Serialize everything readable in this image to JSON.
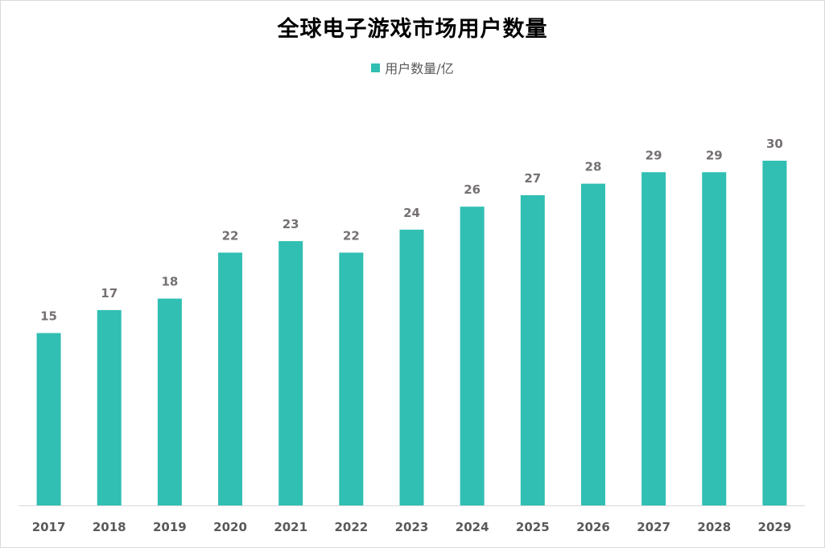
{
  "chart_data": {
    "type": "bar",
    "title": "全球电子游戏市场用户数量",
    "categories": [
      "2017",
      "2018",
      "2019",
      "2020",
      "2021",
      "2022",
      "2023",
      "2024",
      "2025",
      "2026",
      "2027",
      "2028",
      "2029"
    ],
    "series": [
      {
        "name": "用户数量/亿",
        "values": [
          15,
          17,
          18,
          22,
          23,
          22,
          24,
          26,
          27,
          28,
          29,
          29,
          30
        ],
        "color": "#30BFB2"
      }
    ],
    "xlabel": "",
    "ylabel": "",
    "ylim": [
      0,
      30
    ],
    "grid": false,
    "legend": "top-center",
    "data_labels": true
  }
}
